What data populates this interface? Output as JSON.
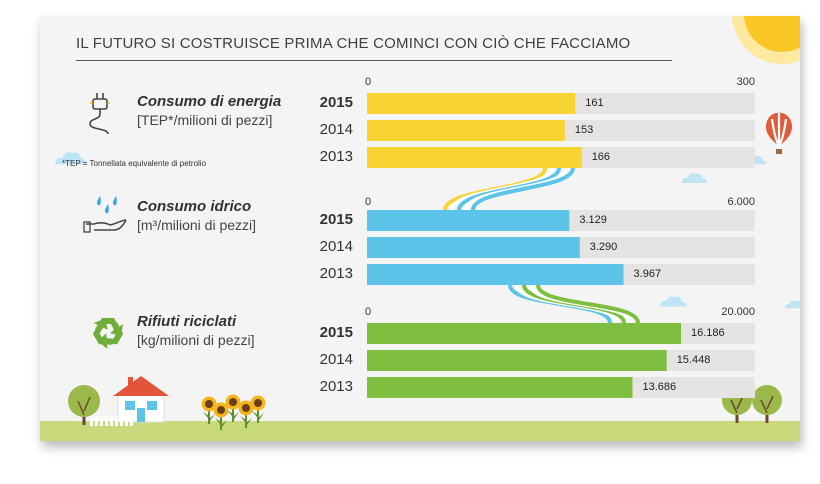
{
  "title": "IL FUTURO SI COSTRUISCE PRIMA CHE COMINCI CON CIÒ CHE FACCIAMO",
  "footnote": "*TEP = Tonnellata equivalente di petrolio",
  "colors": {
    "energy": "#f7d433",
    "water": "#5bc4e8",
    "waste": "#7ebf40",
    "track": "#e6e4e3",
    "ground": "#c7d97a"
  },
  "icons": [
    "plug-icon",
    "water-hand-icon",
    "recycle-icon",
    "sun-icon",
    "hot-air-balloon-icon",
    "cloud-icon",
    "tree-icon",
    "house-icon",
    "sunflower-icon",
    "fence-icon"
  ],
  "chart_data": [
    {
      "type": "bar",
      "title": "Consumo di energia",
      "unit": "[TEP*/milioni di pezzi]",
      "categories": [
        "2015",
        "2014",
        "2013"
      ],
      "values": [
        161,
        153,
        166
      ],
      "labels": [
        "161",
        "153",
        "166"
      ],
      "xlim": [
        0,
        300
      ],
      "axis_labels": [
        "0",
        "300"
      ]
    },
    {
      "type": "bar",
      "title": "Consumo idrico",
      "unit": "[m³/milioni di pezzi]",
      "categories": [
        "2015",
        "2014",
        "2013"
      ],
      "values": [
        3129,
        3290,
        3967
      ],
      "labels": [
        "3.129",
        "3.290",
        "3.967"
      ],
      "xlim": [
        0,
        6000
      ],
      "axis_labels": [
        "0",
        "6.000"
      ]
    },
    {
      "type": "bar",
      "title": "Rifiuti riciclati",
      "unit": "[kg/milioni di pezzi]",
      "categories": [
        "2015",
        "2014",
        "2013"
      ],
      "values": [
        16186,
        15448,
        13686
      ],
      "labels": [
        "16.186",
        "15.448",
        "13.686"
      ],
      "xlim": [
        0,
        20000
      ],
      "axis_labels": [
        "0",
        "20.000"
      ]
    }
  ]
}
